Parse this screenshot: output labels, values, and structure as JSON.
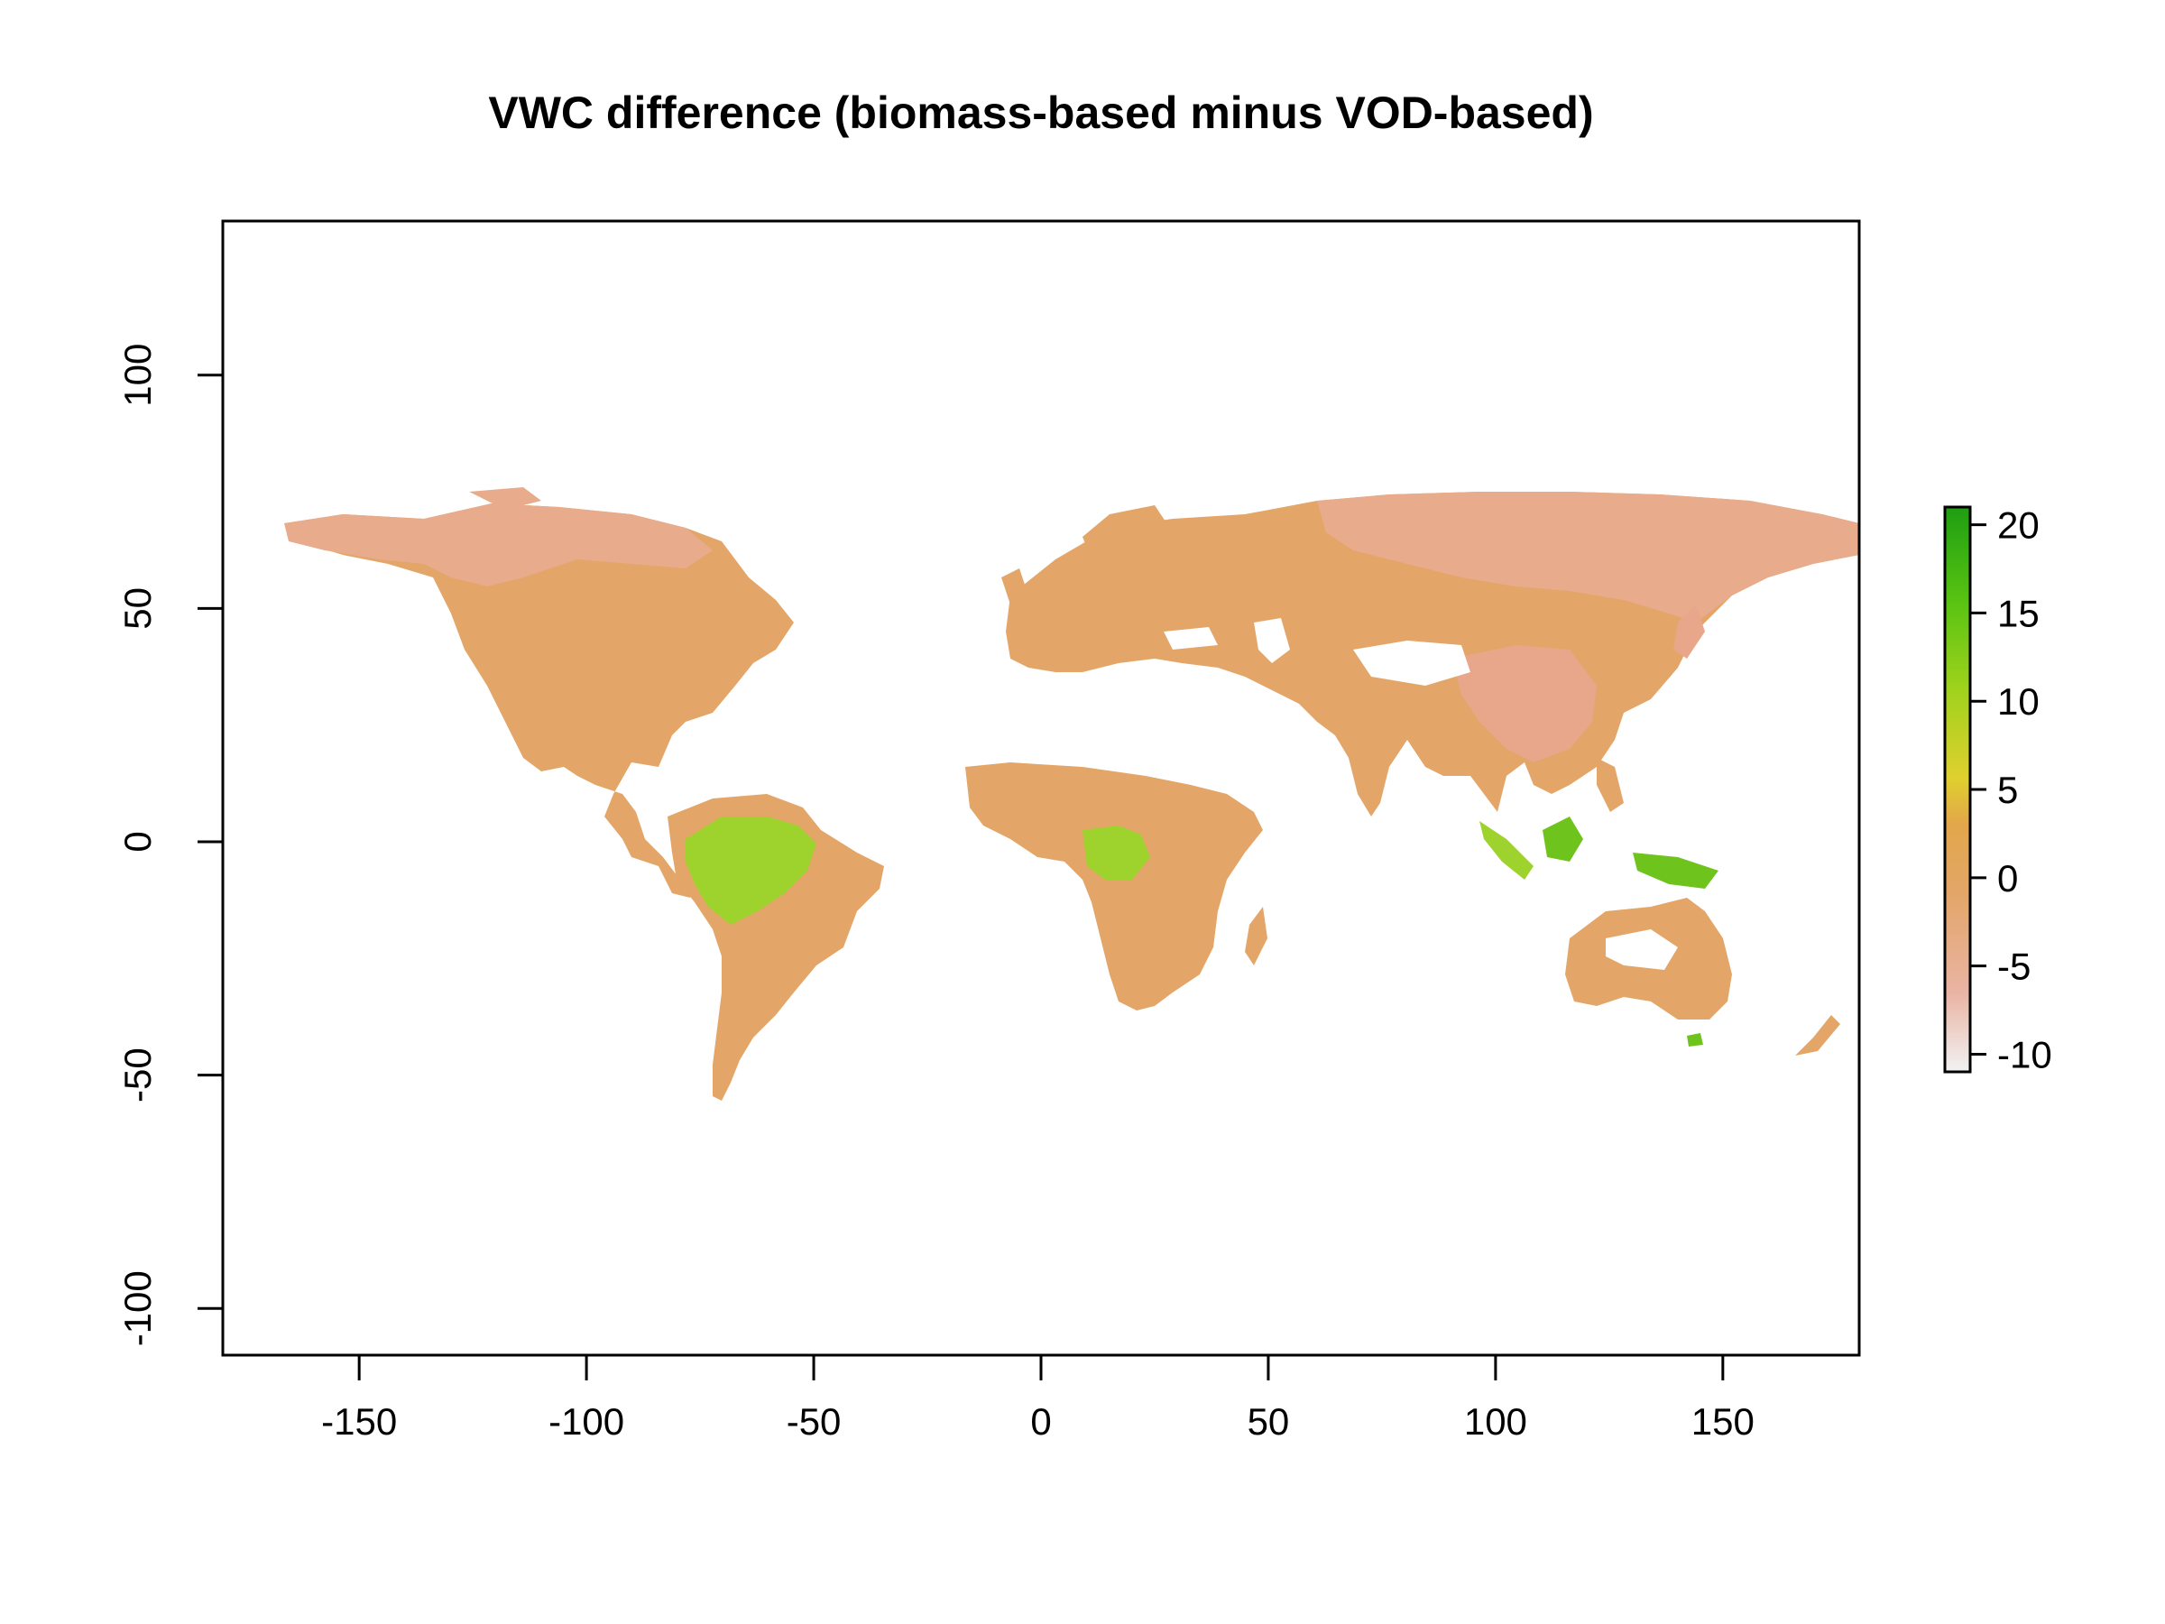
{
  "chart_data": {
    "type": "heatmap",
    "title": "VWC difference (biomass-based minus VOD-based)",
    "xlabel": "",
    "ylabel": "",
    "xlim": [
      -180,
      180
    ],
    "ylim": [
      -110,
      133
    ],
    "x_ticks": [
      -150,
      -100,
      -50,
      0,
      50,
      100,
      150
    ],
    "y_ticks": [
      -100,
      -50,
      0,
      50,
      100
    ],
    "x_tick_labels": [
      "-150",
      "-100",
      "-50",
      "0",
      "50",
      "100",
      "150"
    ],
    "y_tick_labels": [
      "-100",
      "-50",
      "0",
      "50",
      "100"
    ],
    "legend": {
      "placement": "right",
      "range": [
        -11,
        21
      ],
      "ticks": [
        20,
        15,
        10,
        5,
        0,
        -5,
        -10
      ],
      "tick_labels": [
        "20",
        "15",
        "10",
        "5",
        "0",
        "-5",
        "-10"
      ],
      "colors": [
        "#f2f2f2",
        "#e9b4a4",
        "#e3a66a",
        "#e2a74a",
        "#e0d02e",
        "#9ed21c",
        "#56c212",
        "#1e9e12"
      ]
    },
    "colors": {
      "background_land": "#e3a668",
      "boreal": "#e8ab8c",
      "tropical_forest": "#9ed22c",
      "positive_hot": "#6ec41c"
    }
  }
}
